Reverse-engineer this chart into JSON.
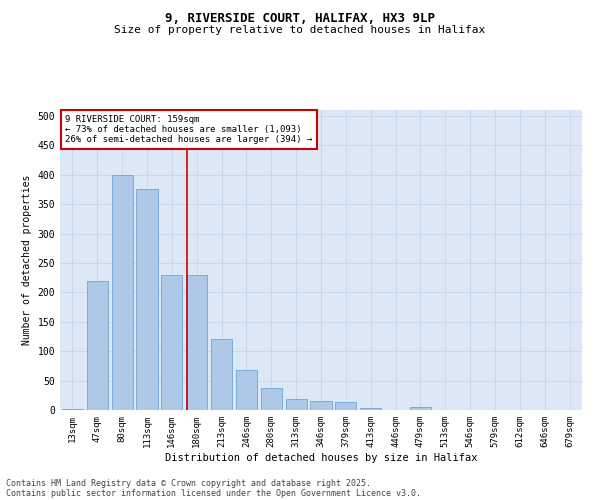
{
  "title1": "9, RIVERSIDE COURT, HALIFAX, HX3 9LP",
  "title2": "Size of property relative to detached houses in Halifax",
  "xlabel": "Distribution of detached houses by size in Halifax",
  "ylabel": "Number of detached properties",
  "categories": [
    "13sqm",
    "47sqm",
    "80sqm",
    "113sqm",
    "146sqm",
    "180sqm",
    "213sqm",
    "246sqm",
    "280sqm",
    "313sqm",
    "346sqm",
    "379sqm",
    "413sqm",
    "446sqm",
    "479sqm",
    "513sqm",
    "546sqm",
    "579sqm",
    "612sqm",
    "646sqm",
    "679sqm"
  ],
  "values": [
    2,
    220,
    400,
    375,
    230,
    230,
    120,
    68,
    38,
    18,
    16,
    14,
    4,
    0,
    5,
    0,
    0,
    0,
    0,
    0,
    0
  ],
  "bar_color": "#aec8e8",
  "bar_edge_color": "#5b9bd5",
  "red_line_x": 4.62,
  "annotation_line1": "9 RIVERSIDE COURT: 159sqm",
  "annotation_line2": "← 73% of detached houses are smaller (1,093)",
  "annotation_line3": "26% of semi-detached houses are larger (394) →",
  "annotation_box_color": "#ffffff",
  "annotation_box_edge_color": "#cc0000",
  "ylim": [
    0,
    510
  ],
  "yticks": [
    0,
    50,
    100,
    150,
    200,
    250,
    300,
    350,
    400,
    450,
    500
  ],
  "grid_color": "#c8d8ea",
  "bg_color": "#dce8f5",
  "footer1": "Contains HM Land Registry data © Crown copyright and database right 2025.",
  "footer2": "Contains public sector information licensed under the Open Government Licence v3.0."
}
